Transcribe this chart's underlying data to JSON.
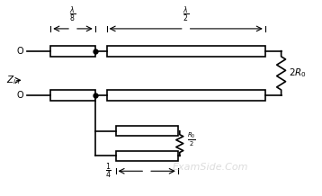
{
  "bg_color": "#ffffff",
  "line_color": "#000000",
  "line_width": 1.2,
  "thin_line": 0.8,
  "watermark": "ExamSide.Com",
  "watermark_color": "#c0c0c0",
  "watermark_fontsize": 8
}
